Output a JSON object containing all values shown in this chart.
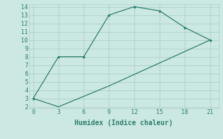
{
  "xlabel": "Humidex (Indice chaleur)",
  "line1_x": [
    0,
    3,
    6,
    9,
    12,
    15,
    18,
    21
  ],
  "line1_y": [
    3,
    8,
    8,
    13,
    14,
    13.5,
    11.5,
    10
  ],
  "line2_x": [
    0,
    3,
    9,
    21
  ],
  "line2_y": [
    3,
    2,
    4.5,
    10
  ],
  "line_color": "#2d7d6d",
  "bg_color": "#cce8e3",
  "grid_color": "#aacfca",
  "xlim": [
    -0.5,
    22
  ],
  "ylim": [
    1.8,
    14.3
  ],
  "xticks": [
    0,
    3,
    6,
    9,
    12,
    15,
    18,
    21
  ],
  "yticks": [
    2,
    3,
    4,
    5,
    6,
    7,
    8,
    9,
    10,
    11,
    12,
    13,
    14
  ],
  "xlabel_fontsize": 7,
  "tick_fontsize": 6
}
